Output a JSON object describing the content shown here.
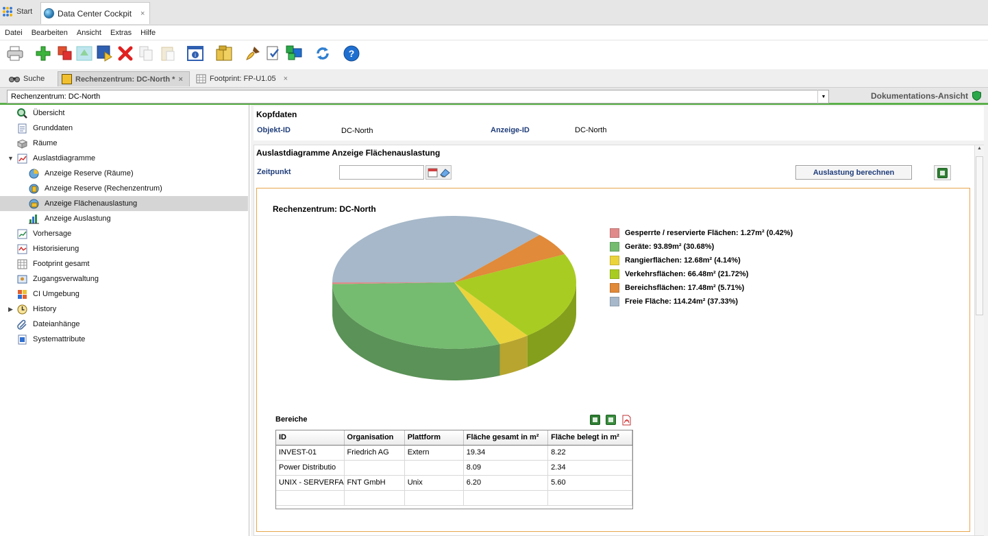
{
  "top_tabs": {
    "start": "Start",
    "cockpit": "Data Center Cockpit",
    "close": "×"
  },
  "menu": [
    "Datei",
    "Bearbeiten",
    "Ansicht",
    "Extras",
    "Hilfe"
  ],
  "toolbar": {
    "icons": [
      "printer-icon",
      "add-icon",
      "copy-objects-icon",
      "up-level-icon",
      "run-icon",
      "delete-icon",
      "copy-icon",
      "paste-icon",
      "properties-icon",
      "cabinet-icon",
      "brush-icon",
      "checklist-icon",
      "cubes-icon",
      "refresh-icon",
      "help-icon"
    ],
    "help_glyph": "?",
    "info_glyph": "i"
  },
  "doc_tabs": {
    "search": "Suche",
    "rechenzentrum": "Rechenzentrum: DC-North *",
    "footprint": "Footprint: FP-U1.05",
    "close": "×"
  },
  "object_bar": {
    "value": "Rechenzentrum: DC-North",
    "doc_view": "Dokumentations-Ansicht"
  },
  "sidebar": {
    "items": [
      {
        "label": "Übersicht",
        "icon": "magnifier-icon"
      },
      {
        "label": "Grunddaten",
        "icon": "document-icon"
      },
      {
        "label": "Räume",
        "icon": "box-icon"
      },
      {
        "label": "Auslastdiagramme",
        "icon": "chart-icon"
      },
      {
        "label": "Anzeige Reserve (Räume)",
        "icon": "globe-chart-icon"
      },
      {
        "label": "Anzeige Reserve (Rechenzentrum)",
        "icon": "globe-chart-icon"
      },
      {
        "label": "Anzeige Flächenauslastung",
        "icon": "globe-chart-icon"
      },
      {
        "label": "Anzeige Auslastung",
        "icon": "bar-chart-icon"
      },
      {
        "label": "Vorhersage",
        "icon": "chart-icon"
      },
      {
        "label": "Historisierung",
        "icon": "chart-icon"
      },
      {
        "label": "Footprint gesamt",
        "icon": "footprint-icon"
      },
      {
        "label": "Zugangsverwaltung",
        "icon": "access-icon"
      },
      {
        "label": "CI Umgebung",
        "icon": "grid-icon"
      },
      {
        "label": "History",
        "icon": "history-icon"
      },
      {
        "label": "Dateianhänge",
        "icon": "paperclip-icon"
      },
      {
        "label": "Systemattribute",
        "icon": "attributes-icon"
      }
    ],
    "selected_index": 6,
    "expander_open": "▼",
    "expander_closed": "▶"
  },
  "kopfdaten": {
    "title": "Kopfdaten",
    "objekt_id_label": "Objekt-ID",
    "objekt_id_value": "DC-North",
    "anzeige_id_label": "Anzeige-ID",
    "anzeige_id_value": "DC-North"
  },
  "auslast": {
    "title": "Auslastdiagramme Anzeige Flächenauslastung",
    "zeitpunkt_label": "Zeitpunkt",
    "zeitpunkt_value": "",
    "calc_button": "Auslastung berechnen"
  },
  "chart_data": {
    "type": "pie",
    "title": "Rechenzentrum: DC-North",
    "slices": [
      {
        "label": "Gesperrte / reservierte Flächen: 1.27m² (0.42%)",
        "value": 1.27,
        "percent": 0.42,
        "color": "#e08a8a"
      },
      {
        "label": "Geräte: 93.89m² (30.68%)",
        "value": 93.89,
        "percent": 30.68,
        "color": "#75bb70"
      },
      {
        "label": "Rangierflächen: 12.68m² (4.14%)",
        "value": 12.68,
        "percent": 4.14,
        "color": "#ebd33c"
      },
      {
        "label": "Verkehrsflächen: 66.48m² (21.72%)",
        "value": 66.48,
        "percent": 21.72,
        "color": "#a9cc22"
      },
      {
        "label": "Bereichsflächen: 17.48m² (5.71%)",
        "value": 17.48,
        "percent": 5.71,
        "color": "#e08a3a"
      },
      {
        "label": "Freie Fläche: 114.24m² (37.33%)",
        "value": 114.24,
        "percent": 37.33,
        "color": "#a6b8c9"
      }
    ],
    "legend_position": "right",
    "three_d": true
  },
  "bereiche": {
    "title": "Bereiche",
    "export_icons": [
      "excel-icon",
      "excel-export-icon",
      "pdf-icon"
    ],
    "columns": [
      "ID",
      "Organisation",
      "Plattform",
      "Fläche gesamt in m²",
      "Fläche belegt in m²"
    ],
    "rows": [
      [
        "INVEST-01",
        "Friedrich AG",
        "Extern",
        "19.34",
        "8.22"
      ],
      [
        "Power Distributio",
        "",
        "",
        "8.09",
        "2.34"
      ],
      [
        "UNIX - SERVERFA",
        "FNT GmbH",
        "Unix",
        "6.20",
        "5.60"
      ],
      [
        "",
        "",
        "",
        "",
        ""
      ],
      [
        "",
        "",
        "",
        "",
        ""
      ]
    ]
  }
}
